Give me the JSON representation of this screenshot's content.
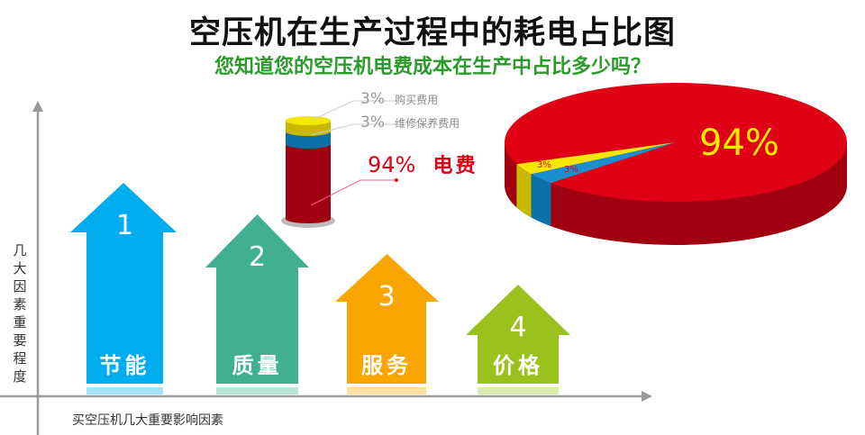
{
  "title": "空压机在生产过程中的耗电占比图",
  "subtitle": "您知道您的空压机电费成本在生产中占比多少吗？",
  "y_axis_label": "几大因素重要程度",
  "x_axis_label": "买空压机几大重要影响因素",
  "factors": [
    {
      "rank": "1",
      "label": "节能",
      "color": "#00adee"
    },
    {
      "rank": "2",
      "label": "质量",
      "color": "#40b090"
    },
    {
      "rank": "3",
      "label": "服务",
      "color": "#f8a500"
    },
    {
      "rank": "4",
      "label": "价格",
      "color": "#99c31c"
    }
  ],
  "chart_data": {
    "type": "pie",
    "slices": [
      {
        "label": "电费",
        "value": 94,
        "display": "94%",
        "color": "#e00015"
      },
      {
        "label": "维修保养费用",
        "value": 3,
        "display": "3%",
        "color": "#1a8fd0"
      },
      {
        "label": "购买费用",
        "value": 3,
        "display": "3%",
        "color": "#f4e800"
      }
    ]
  }
}
